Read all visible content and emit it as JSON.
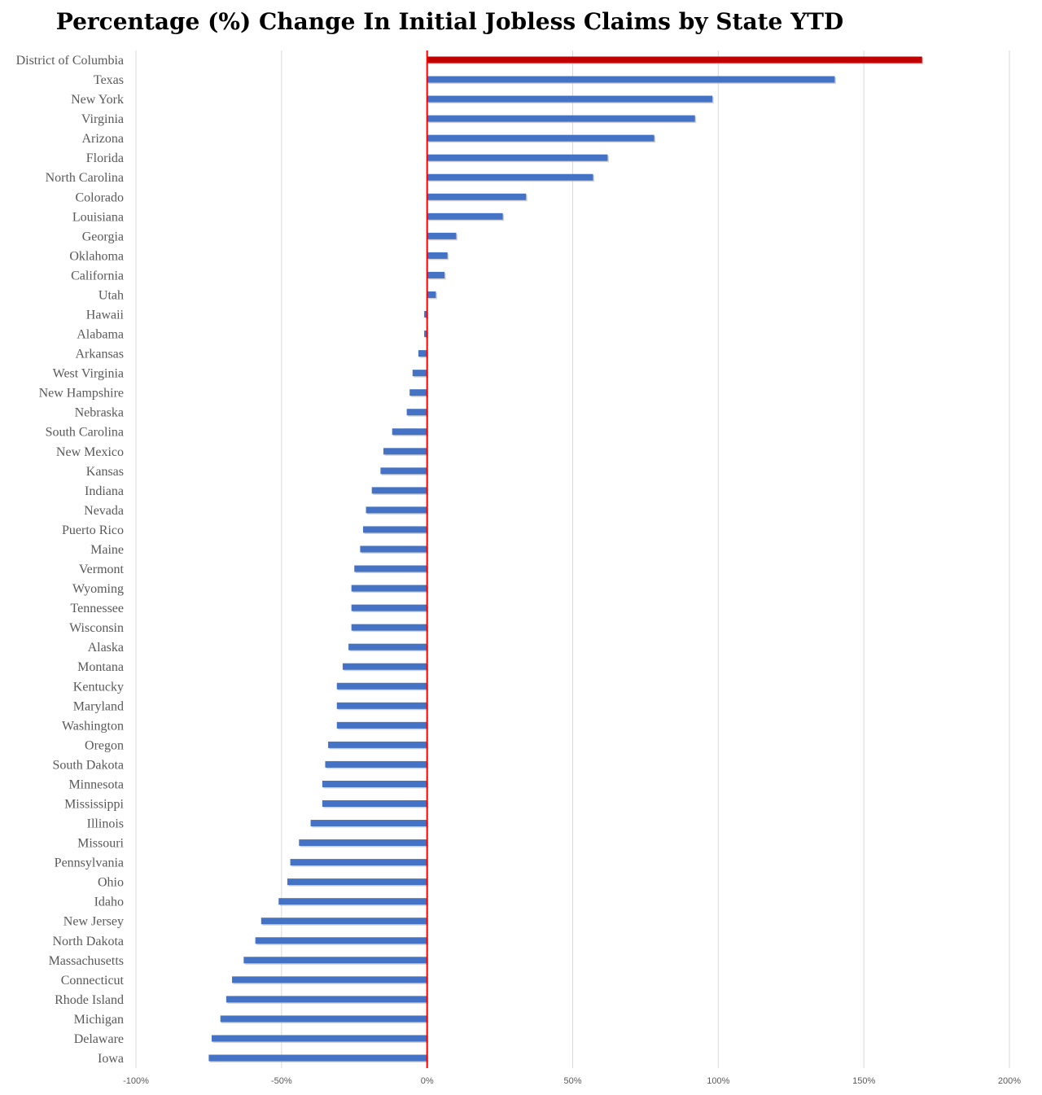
{
  "chart_data": {
    "type": "bar",
    "orientation": "horizontal",
    "title": "Percentage (%) Change In Initial Jobless Claims by State YTD",
    "xlabel": "",
    "ylabel": "",
    "xlim": [
      -100,
      200
    ],
    "x_ticks": [
      -100,
      -50,
      0,
      50,
      100,
      150,
      200
    ],
    "x_tick_labels": [
      "-100%",
      "-50%",
      "0%",
      "50%",
      "100%",
      "150%",
      "200%"
    ],
    "grid": "vertical",
    "colors": {
      "bar": "#4472c4",
      "highlight": "#c00000",
      "zero_line": "#ff0000",
      "grid": "#d9d9d9"
    },
    "highlight_category": "District of Columbia",
    "categories": [
      "District of Columbia",
      "Texas",
      "New York",
      "Virginia",
      "Arizona",
      "Florida",
      "North Carolina",
      "Colorado",
      "Louisiana",
      "Georgia",
      "Oklahoma",
      "California",
      "Utah",
      "Hawaii",
      "Alabama",
      "Arkansas",
      "West Virginia",
      "New Hampshire",
      "Nebraska",
      "South Carolina",
      "New Mexico",
      "Kansas",
      "Indiana",
      "Nevada",
      "Puerto Rico",
      "Maine",
      "Vermont",
      "Wyoming",
      "Tennessee",
      "Wisconsin",
      "Alaska",
      "Montana",
      "Kentucky",
      "Maryland",
      "Washington",
      "Oregon",
      "South Dakota",
      "Minnesota",
      "Mississippi",
      "Illinois",
      "Missouri",
      "Pennsylvania",
      "Ohio",
      "Idaho",
      "New Jersey",
      "North Dakota",
      "Massachusetts",
      "Connecticut",
      "Rhode Island",
      "Michigan",
      "Delaware",
      "Iowa"
    ],
    "values": [
      170,
      140,
      98,
      92,
      78,
      62,
      57,
      34,
      26,
      10,
      7,
      6,
      3,
      -1,
      -1,
      -3,
      -5,
      -6,
      -7,
      -12,
      -15,
      -16,
      -19,
      -21,
      -22,
      -23,
      -25,
      -26,
      -26,
      -26,
      -27,
      -29,
      -31,
      -31,
      -31,
      -34,
      -35,
      -36,
      -36,
      -40,
      -44,
      -47,
      -48,
      -51,
      -57,
      -59,
      -63,
      -67,
      -69,
      -71,
      -74,
      -75
    ]
  }
}
